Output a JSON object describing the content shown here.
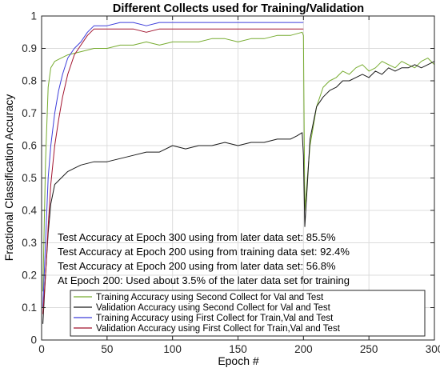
{
  "chart_data": {
    "type": "line",
    "title": "Different Collects used for Training/Validation",
    "xlabel": "Epoch #",
    "ylabel": "Fractional Classification Accuracy",
    "xlim": [
      0,
      300
    ],
    "ylim": [
      0,
      1
    ],
    "xticks": [
      0,
      50,
      100,
      150,
      200,
      250,
      300
    ],
    "yticks": [
      0,
      0.1,
      0.2,
      0.3,
      0.4,
      0.5,
      0.6,
      0.7,
      0.8,
      0.9,
      1
    ],
    "grid": true,
    "legend_position": "lower-right",
    "annotations": [
      "Test Accuracy at Epoch 300 using from later data set: 85.5%",
      "Test Accuracy at Epoch 200 using from training data set: 92.4%",
      "Test Accuracy at Epoch 200 using from later data set: 56.8%",
      "At Epoch 200: Used about 3.5% of the later data set for training"
    ],
    "series": [
      {
        "name": "Training Accuracy using Second Collect for Val and Test",
        "color": "#77ac30",
        "x": [
          1,
          3,
          5,
          7,
          10,
          15,
          20,
          30,
          40,
          50,
          60,
          70,
          80,
          90,
          100,
          110,
          120,
          130,
          140,
          150,
          160,
          170,
          180,
          190,
          199,
          200,
          201,
          203,
          205,
          208,
          210,
          215,
          220,
          225,
          230,
          235,
          240,
          245,
          250,
          255,
          260,
          265,
          270,
          275,
          280,
          285,
          290,
          295,
          300
        ],
        "y": [
          0.15,
          0.55,
          0.78,
          0.84,
          0.86,
          0.87,
          0.88,
          0.89,
          0.9,
          0.9,
          0.91,
          0.91,
          0.92,
          0.91,
          0.92,
          0.92,
          0.92,
          0.93,
          0.93,
          0.92,
          0.93,
          0.93,
          0.94,
          0.94,
          0.95,
          0.94,
          0.4,
          0.5,
          0.6,
          0.67,
          0.72,
          0.78,
          0.8,
          0.81,
          0.83,
          0.82,
          0.84,
          0.85,
          0.83,
          0.84,
          0.86,
          0.85,
          0.84,
          0.86,
          0.85,
          0.84,
          0.86,
          0.87,
          0.85
        ]
      },
      {
        "name": "Validation Accuracy using Second Collect for Val and Test",
        "color": "#1a1a1a",
        "x": [
          1,
          3,
          5,
          7,
          10,
          15,
          20,
          25,
          30,
          40,
          50,
          60,
          70,
          80,
          90,
          100,
          110,
          120,
          130,
          140,
          150,
          160,
          170,
          180,
          190,
          195,
          199,
          200,
          201,
          203,
          205,
          208,
          210,
          215,
          220,
          225,
          230,
          235,
          240,
          245,
          250,
          255,
          260,
          265,
          270,
          275,
          280,
          285,
          290,
          295,
          300
        ],
        "y": [
          0.05,
          0.2,
          0.33,
          0.42,
          0.48,
          0.5,
          0.52,
          0.53,
          0.54,
          0.55,
          0.55,
          0.56,
          0.57,
          0.58,
          0.58,
          0.6,
          0.59,
          0.6,
          0.6,
          0.61,
          0.6,
          0.61,
          0.61,
          0.62,
          0.62,
          0.63,
          0.64,
          0.57,
          0.35,
          0.48,
          0.62,
          0.68,
          0.72,
          0.75,
          0.77,
          0.78,
          0.8,
          0.8,
          0.81,
          0.82,
          0.81,
          0.83,
          0.82,
          0.84,
          0.83,
          0.84,
          0.84,
          0.85,
          0.84,
          0.85,
          0.86
        ]
      },
      {
        "name": "Training Accuracy using First Collect for Train,Val and Test",
        "color": "#3e3edb",
        "x": [
          1,
          3,
          5,
          7,
          10,
          13,
          16,
          20,
          25,
          30,
          35,
          40,
          45,
          50,
          60,
          70,
          80,
          90,
          100,
          110,
          120,
          130,
          140,
          150,
          160,
          170,
          180,
          190,
          200
        ],
        "y": [
          0.1,
          0.3,
          0.5,
          0.6,
          0.7,
          0.77,
          0.82,
          0.87,
          0.9,
          0.92,
          0.95,
          0.97,
          0.97,
          0.97,
          0.98,
          0.98,
          0.97,
          0.98,
          0.98,
          0.98,
          0.98,
          0.98,
          0.98,
          0.98,
          0.98,
          0.98,
          0.98,
          0.98,
          0.98
        ]
      },
      {
        "name": "Validation Accuracy using First Collect for Train,Val and Test",
        "color": "#a2142f",
        "x": [
          1,
          3,
          5,
          7,
          10,
          13,
          16,
          20,
          25,
          30,
          35,
          40,
          45,
          50,
          60,
          70,
          80,
          90,
          100,
          110,
          120,
          130,
          140,
          150,
          160,
          170,
          180,
          190,
          200
        ],
        "y": [
          0.08,
          0.2,
          0.35,
          0.48,
          0.6,
          0.68,
          0.75,
          0.82,
          0.88,
          0.91,
          0.94,
          0.96,
          0.96,
          0.96,
          0.96,
          0.96,
          0.95,
          0.96,
          0.96,
          0.96,
          0.96,
          0.96,
          0.96,
          0.96,
          0.96,
          0.96,
          0.96,
          0.96,
          0.96
        ]
      }
    ]
  }
}
